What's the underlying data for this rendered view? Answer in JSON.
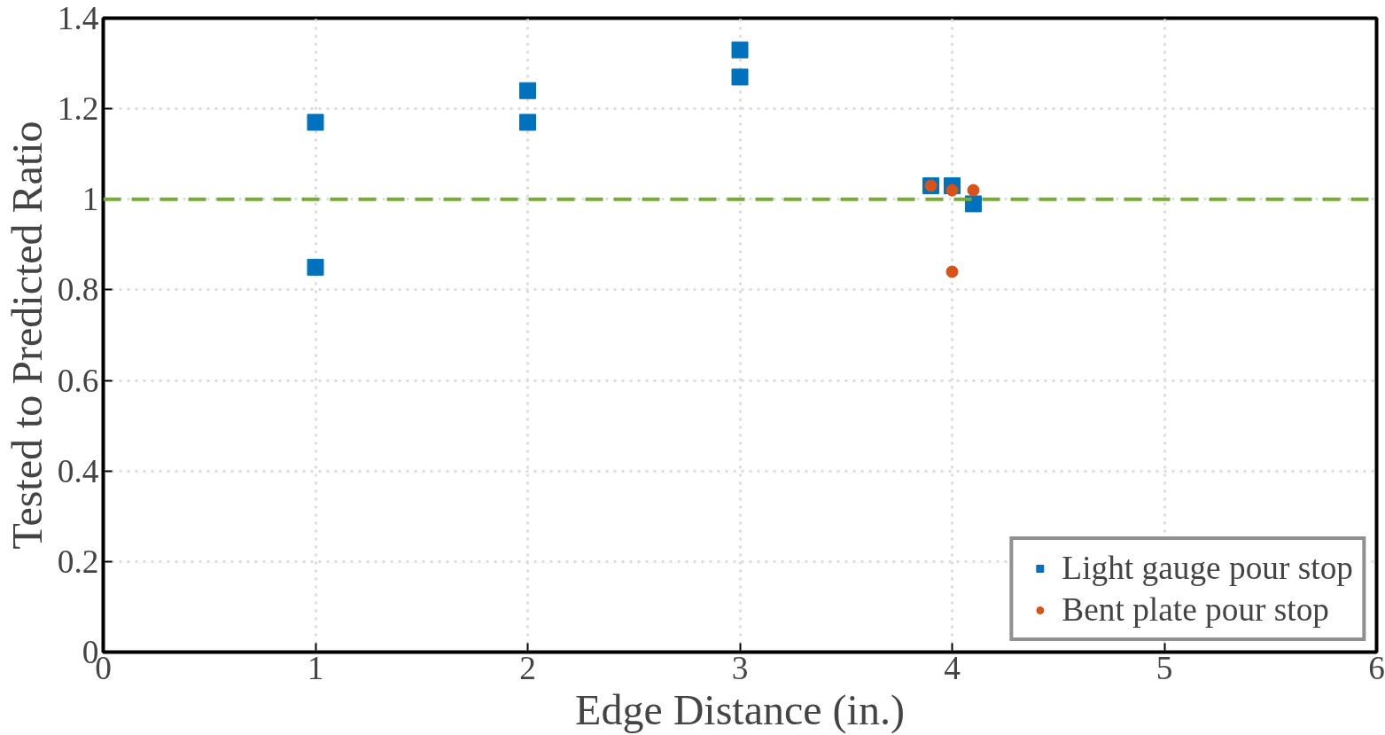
{
  "chart_data": {
    "type": "scatter",
    "xlabel": "Edge Distance (in.)",
    "ylabel": "Tested to Predicted Ratio",
    "xlim": [
      0,
      6
    ],
    "xticks": [
      0,
      1,
      2,
      3,
      4,
      5,
      6
    ],
    "ylim": [
      0,
      1.4
    ],
    "yticks": [
      0,
      0.2,
      0.4,
      0.6,
      0.8,
      1,
      1.2,
      1.4
    ],
    "grid": true,
    "legend": "bottom right",
    "series": [
      {
        "name": "Light gauge pour stop",
        "color": "#0072bd",
        "marker": "square",
        "x": [
          1,
          1,
          2,
          2,
          3,
          3,
          3.9,
          4,
          4.1
        ],
        "values": [
          1.17,
          0.85,
          1.24,
          1.17,
          1.33,
          1.27,
          1.03,
          1.03,
          0.99
        ]
      },
      {
        "name": "Bent plate pour stop",
        "color": "#d95319",
        "marker": "circle",
        "x": [
          3.9,
          4,
          4.1,
          4
        ],
        "values": [
          1.03,
          1.02,
          1.02,
          0.84
        ]
      }
    ],
    "ref_lines": [
      {
        "axis": "y",
        "value": 1,
        "label": null,
        "color": "#77ac30",
        "line_style": "dashed"
      }
    ]
  }
}
